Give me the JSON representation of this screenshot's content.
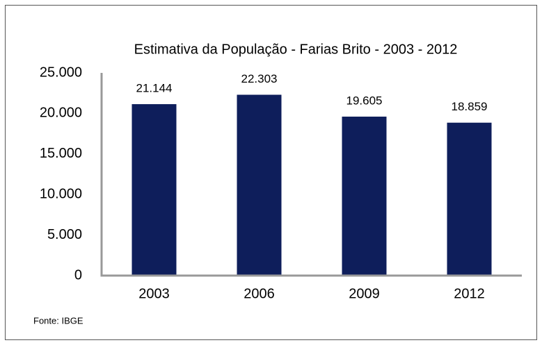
{
  "chart_data": {
    "type": "bar",
    "title": "Estimativa da População -  Farias Brito  -  2003 - 2012",
    "categories": [
      "2003",
      "2006",
      "2009",
      "2012"
    ],
    "values": [
      21144,
      22303,
      19605,
      18859
    ],
    "value_labels": [
      "21.144",
      "22.303",
      "19.605",
      "18.859"
    ],
    "color": "#0e1e5b",
    "ylim": [
      0,
      25000
    ],
    "yticks": [
      0,
      {
        "value": 5000,
        "label": "5.000"
      },
      {
        "value": 10000,
        "label": "10.000"
      },
      {
        "value": 15000,
        "label": "15.000"
      },
      {
        "value": 20000,
        "label": "20.000"
      },
      {
        "value": 25000,
        "label": "25.000"
      }
    ],
    "grid": false,
    "source": "Fonte: IBGE"
  }
}
